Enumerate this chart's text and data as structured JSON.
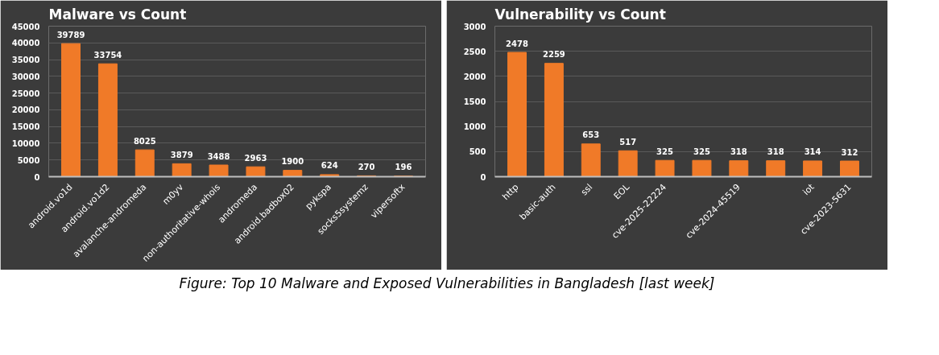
{
  "chart_data": [
    {
      "type": "bar",
      "title": "Malware vs Count",
      "categories": [
        "android.vo1d",
        "android.vo1d2",
        "avalanche-andromeda",
        "m0yv",
        "non-authoritative-whois",
        "andromeda",
        "android.badbox02",
        "pykspa",
        "socks5systemz",
        "vipersoftx"
      ],
      "values": [
        39789,
        33754,
        8025,
        3879,
        3488,
        2963,
        1900,
        624,
        270,
        196
      ],
      "color": "#f07a28",
      "ylim": [
        0,
        45000
      ],
      "yticks": [
        0,
        5000,
        10000,
        15000,
        20000,
        25000,
        30000,
        35000,
        40000,
        45000
      ],
      "grid": "y",
      "data_labels": true,
      "annotations": [
        "Figure: Top 10 Malware and Exposed Vulnerabilities in Bangladesh [last week]"
      ]
    },
    {
      "type": "bar",
      "title": "Vulnerability vs Count",
      "categories": [
        "http",
        "basic-auth",
        "ssl",
        "EOL",
        "cve-2025-22224",
        null,
        "cve-2024-45519",
        null,
        "iot",
        "cve-2023-5631"
      ],
      "values": [
        2478,
        2259,
        653,
        517,
        325,
        325,
        318,
        318,
        314,
        312
      ],
      "color": "#f07a28",
      "ylim": [
        0,
        3000
      ],
      "yticks": [
        0,
        500,
        1000,
        1500,
        2000,
        2500,
        3000
      ],
      "grid": "y",
      "data_labels": true
    }
  ]
}
